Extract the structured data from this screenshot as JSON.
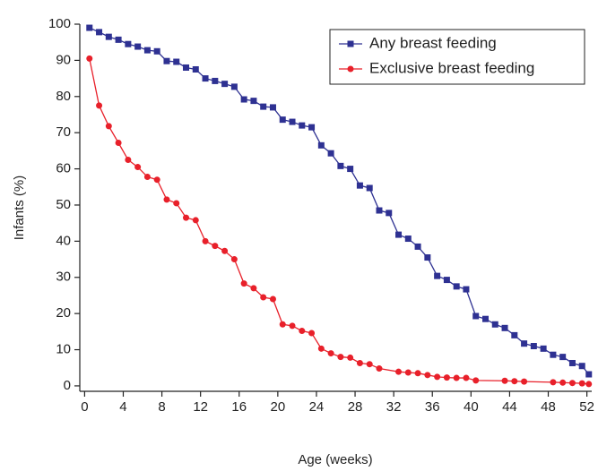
{
  "chart_data": {
    "type": "line",
    "xlabel": "Age (weeks)",
    "ylabel": "Infants (%)",
    "xlim": [
      -0.5,
      52.5
    ],
    "ylim": [
      -1.5,
      100
    ],
    "xticks": [
      0,
      4,
      8,
      12,
      16,
      20,
      24,
      28,
      32,
      36,
      40,
      44,
      48,
      52
    ],
    "yticks": [
      0,
      10,
      20,
      30,
      40,
      50,
      60,
      70,
      80,
      90,
      100
    ],
    "grid": false,
    "legend": "upper right",
    "series": [
      {
        "name": "Any breast feeding",
        "color": "#2e3192",
        "marker": "square",
        "x": [
          0.5,
          1.5,
          2.5,
          3.5,
          4.5,
          5.5,
          6.5,
          7.5,
          8.5,
          9.5,
          10.5,
          11.5,
          12.5,
          13.5,
          14.5,
          15.5,
          16.5,
          17.5,
          18.5,
          19.5,
          20.5,
          21.5,
          22.5,
          23.5,
          24.5,
          25.5,
          26.5,
          27.5,
          28.5,
          29.5,
          30.5,
          31.5,
          32.5,
          33.5,
          34.5,
          35.5,
          36.5,
          37.5,
          38.5,
          39.5,
          40.5,
          41.5,
          42.5,
          43.5,
          44.5,
          45.5,
          46.5,
          47.5,
          48.5,
          49.5,
          50.5,
          51.5,
          52.2
        ],
        "values": [
          99,
          97.8,
          96.5,
          95.7,
          94.5,
          93.8,
          92.8,
          92.5,
          89.8,
          89.6,
          88,
          87.5,
          85,
          84.3,
          83.5,
          82.7,
          79.2,
          78.8,
          77.2,
          77,
          73.6,
          73,
          72,
          71.5,
          66.5,
          64.3,
          60.8,
          60,
          55.4,
          54.7,
          48.5,
          47.8,
          41.8,
          40.7,
          38.5,
          35.5,
          30.4,
          29.3,
          27.5,
          26.7,
          19.3,
          18.5,
          17,
          16,
          14,
          11.7,
          11,
          10.3,
          8.6,
          8,
          6.3,
          5.5,
          3.2
        ]
      },
      {
        "name": "Exclusive breast feeding",
        "color": "#e8202a",
        "marker": "circle",
        "x": [
          0.5,
          1.5,
          2.5,
          3.5,
          4.5,
          5.5,
          6.5,
          7.5,
          8.5,
          9.5,
          10.5,
          11.5,
          12.5,
          13.5,
          14.5,
          15.5,
          16.5,
          17.5,
          18.5,
          19.5,
          20.5,
          21.5,
          22.5,
          23.5,
          24.5,
          25.5,
          26.5,
          27.5,
          28.5,
          29.5,
          30.5,
          32.5,
          33.5,
          34.5,
          35.5,
          36.5,
          37.5,
          38.5,
          39.5,
          40.5,
          43.5,
          44.5,
          45.5,
          48.5,
          49.5,
          50.5,
          51.5,
          52.2
        ],
        "values": [
          90.5,
          77.5,
          71.8,
          67.2,
          62.5,
          60.5,
          57.8,
          57,
          51.5,
          50.5,
          46.5,
          45.8,
          40,
          38.7,
          37.3,
          35,
          28.3,
          27,
          24.5,
          24,
          17,
          16.6,
          15.2,
          14.6,
          10.3,
          9,
          8,
          7.8,
          6.3,
          6,
          4.8,
          3.9,
          3.7,
          3.5,
          3,
          2.5,
          2.3,
          2.2,
          2.2,
          1.5,
          1.4,
          1.3,
          1.2,
          1,
          0.9,
          0.8,
          0.7,
          0.5
        ]
      }
    ]
  }
}
